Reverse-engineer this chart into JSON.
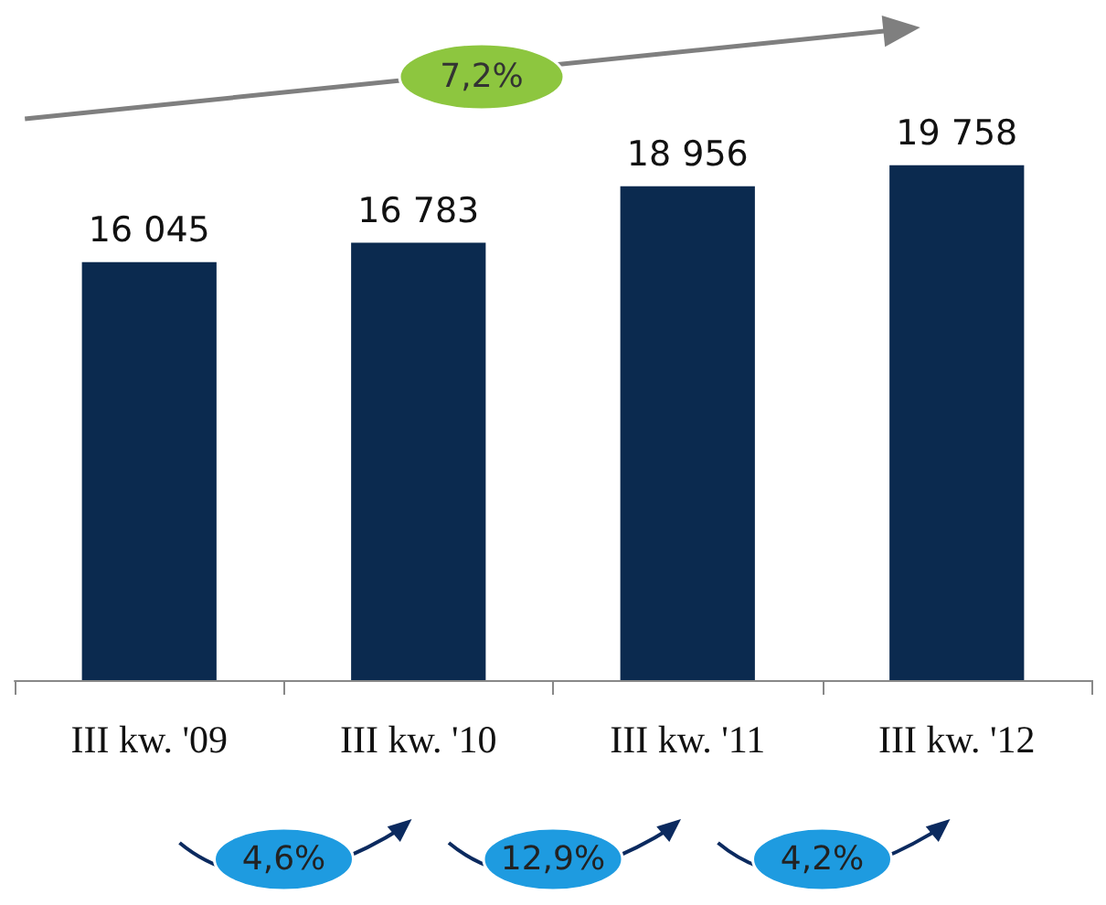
{
  "chart_data": {
    "type": "bar",
    "categories": [
      "III kw. '09",
      "III kw. '10",
      "III kw. '11",
      "III kw. '12"
    ],
    "values": [
      16045,
      16783,
      18956,
      19758
    ],
    "value_labels": [
      "16 045",
      "16 783",
      "18 956",
      "19 758"
    ],
    "color": "#0b2a4f",
    "annotations": [
      "7,2%",
      "4,6%",
      "12,9%",
      "4,2%"
    ]
  }
}
